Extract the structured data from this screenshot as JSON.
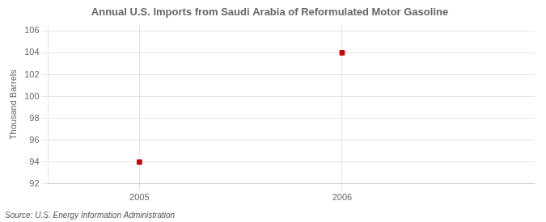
{
  "chart_data": {
    "type": "scatter",
    "title": "Annual U.S. Imports from Saudi Arabia of Reformulated Motor Gasoline",
    "ylabel": "Thousand Barrels",
    "annotations": [
      "Source: U.S. Energy Information Administration"
    ],
    "x": [
      2005,
      2006
    ],
    "values": [
      94,
      104
    ],
    "color": "#cc0000",
    "marker": "square",
    "xlim": [
      2004.55,
      2006.95
    ],
    "xticks": [
      2005,
      2006
    ],
    "ylim": [
      92,
      106.5
    ],
    "yticks": [
      92,
      94,
      96,
      98,
      100,
      102,
      104,
      106
    ],
    "grid": true
  }
}
